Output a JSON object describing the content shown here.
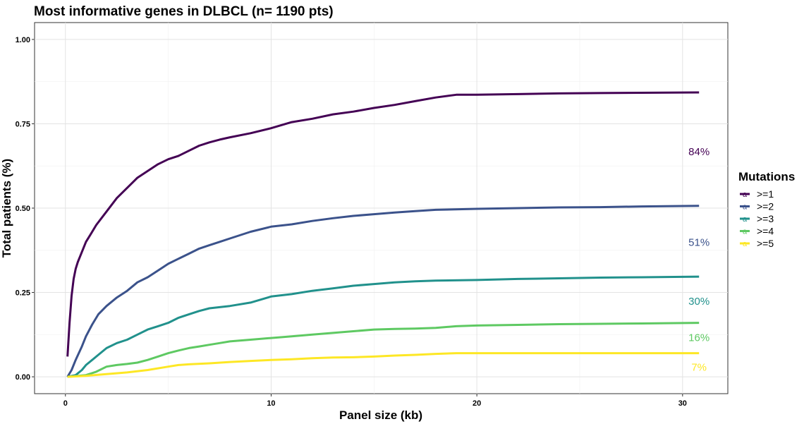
{
  "chart_data": {
    "type": "line",
    "title": "Most informative genes in DLBCL (n= 1190 pts)",
    "xlabel": "Panel size (kb)",
    "ylabel": "Total patients (%)",
    "xlim": [
      -1.5,
      32.2
    ],
    "ylim": [
      -0.05,
      1.05
    ],
    "x_ticks": [
      0,
      10,
      20,
      30
    ],
    "x_tick_labels": [
      "0",
      "10",
      "20",
      "30"
    ],
    "y_ticks": [
      0,
      0.25,
      0.5,
      0.75,
      1
    ],
    "y_tick_labels": [
      "0.00",
      "0.25",
      "0.50",
      "0.75",
      "1.00"
    ],
    "grid": true,
    "legend": {
      "title": "Mutations",
      "position": "right"
    },
    "series": [
      {
        "name": ">=1",
        "color": "#440154",
        "end_label": "84%",
        "x": [
          0.1,
          0.2,
          0.3,
          0.4,
          0.5,
          0.6,
          0.8,
          1.0,
          1.2,
          1.5,
          2.0,
          2.5,
          3.0,
          3.5,
          4.0,
          4.5,
          5.0,
          5.5,
          6.0,
          6.5,
          7.0,
          7.5,
          8.0,
          9.0,
          10.0,
          11.0,
          12.0,
          13.0,
          14.0,
          15.0,
          16.0,
          17.0,
          18.0,
          19.0,
          20.0,
          22.0,
          24.0,
          26.0,
          28.0,
          30.8
        ],
        "y": [
          0.06,
          0.16,
          0.24,
          0.29,
          0.32,
          0.34,
          0.37,
          0.4,
          0.42,
          0.45,
          0.49,
          0.53,
          0.56,
          0.59,
          0.61,
          0.63,
          0.645,
          0.655,
          0.67,
          0.685,
          0.695,
          0.703,
          0.71,
          0.722,
          0.737,
          0.755,
          0.765,
          0.778,
          0.786,
          0.797,
          0.806,
          0.817,
          0.828,
          0.836,
          0.836,
          0.838,
          0.84,
          0.841,
          0.842,
          0.843
        ]
      },
      {
        "name": ">=2",
        "color": "#3b528b",
        "end_label": "51%",
        "x": [
          0.1,
          0.3,
          0.5,
          0.8,
          1.0,
          1.3,
          1.6,
          2.0,
          2.5,
          3.0,
          3.5,
          4.0,
          4.5,
          5.0,
          5.5,
          6.0,
          6.5,
          7.0,
          7.5,
          8.0,
          9.0,
          10.0,
          11.0,
          12.0,
          13.0,
          14.0,
          15.0,
          16.0,
          17.0,
          18.0,
          20.0,
          22.0,
          24.0,
          26.0,
          28.0,
          30.8
        ],
        "y": [
          0.0,
          0.02,
          0.05,
          0.09,
          0.12,
          0.155,
          0.185,
          0.21,
          0.235,
          0.255,
          0.28,
          0.295,
          0.315,
          0.335,
          0.35,
          0.365,
          0.38,
          0.39,
          0.4,
          0.41,
          0.43,
          0.445,
          0.452,
          0.462,
          0.47,
          0.477,
          0.482,
          0.487,
          0.491,
          0.495,
          0.498,
          0.5,
          0.502,
          0.503,
          0.505,
          0.507
        ]
      },
      {
        "name": ">=3",
        "color": "#21918c",
        "end_label": "30%",
        "x": [
          0.1,
          0.5,
          0.8,
          1.0,
          1.3,
          1.6,
          2.0,
          2.5,
          3.0,
          3.5,
          4.0,
          4.5,
          5.0,
          5.5,
          6.0,
          6.5,
          7.0,
          8.0,
          9.0,
          10.0,
          11.0,
          12.0,
          13.0,
          14.0,
          15.0,
          16.0,
          17.0,
          18.0,
          20.0,
          22.0,
          24.0,
          26.0,
          28.0,
          30.8
        ],
        "y": [
          0.0,
          0.005,
          0.02,
          0.035,
          0.05,
          0.065,
          0.085,
          0.1,
          0.11,
          0.125,
          0.14,
          0.15,
          0.16,
          0.175,
          0.185,
          0.195,
          0.203,
          0.21,
          0.22,
          0.238,
          0.245,
          0.255,
          0.262,
          0.27,
          0.275,
          0.28,
          0.283,
          0.285,
          0.287,
          0.29,
          0.292,
          0.294,
          0.295,
          0.297
        ]
      },
      {
        "name": ">=4",
        "color": "#5ec962",
        "end_label": "16%",
        "x": [
          0.1,
          1.0,
          1.5,
          2.0,
          2.5,
          3.0,
          3.5,
          4.0,
          4.5,
          5.0,
          5.5,
          6.0,
          6.5,
          7.0,
          7.5,
          8.0,
          9.0,
          10.0,
          11.0,
          12.0,
          13.0,
          14.0,
          15.0,
          16.0,
          17.0,
          18.0,
          19.0,
          20.0,
          22.0,
          24.0,
          26.0,
          28.0,
          30.8
        ],
        "y": [
          0.0,
          0.005,
          0.015,
          0.03,
          0.035,
          0.038,
          0.042,
          0.05,
          0.06,
          0.07,
          0.078,
          0.085,
          0.09,
          0.095,
          0.1,
          0.105,
          0.11,
          0.115,
          0.12,
          0.125,
          0.13,
          0.135,
          0.14,
          0.142,
          0.143,
          0.145,
          0.15,
          0.152,
          0.154,
          0.156,
          0.157,
          0.158,
          0.16
        ]
      },
      {
        "name": ">=5",
        "color": "#fde725",
        "end_label": "7%",
        "x": [
          0.1,
          1.0,
          2.0,
          3.0,
          4.0,
          5.0,
          5.5,
          6.0,
          7.0,
          8.0,
          9.0,
          10.0,
          11.0,
          12.0,
          13.0,
          14.0,
          15.0,
          16.0,
          17.0,
          18.0,
          19.0,
          20.0,
          22.0,
          25.0,
          28.0,
          30.8
        ],
        "y": [
          0.0,
          0.003,
          0.008,
          0.013,
          0.02,
          0.03,
          0.035,
          0.037,
          0.04,
          0.044,
          0.047,
          0.05,
          0.052,
          0.055,
          0.057,
          0.058,
          0.06,
          0.063,
          0.065,
          0.068,
          0.07,
          0.07,
          0.07,
          0.07,
          0.07,
          0.07
        ]
      }
    ]
  }
}
